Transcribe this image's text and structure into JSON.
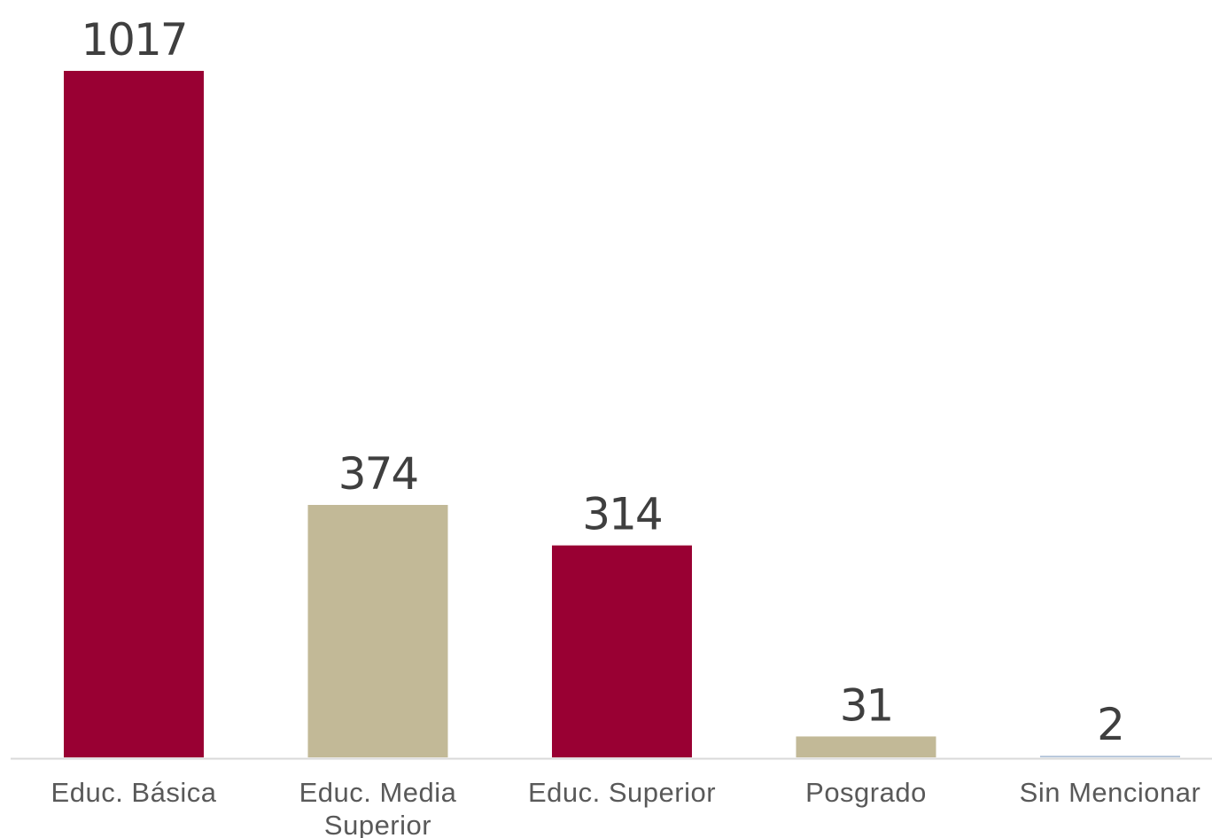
{
  "chart_data": {
    "type": "bar",
    "title": "",
    "xlabel": "",
    "ylabel": "",
    "categories": [
      [
        "Educ. Básica"
      ],
      [
        "Educ. Media",
        "Superior"
      ],
      [
        "Educ. Superior"
      ],
      [
        "Posgrado"
      ],
      [
        "Sin Mencionar"
      ]
    ],
    "values": [
      1017,
      374,
      314,
      31,
      2
    ],
    "bar_colors": [
      "#990033",
      "#C2B997",
      "#990033",
      "#C2B997",
      "#B9C9DC"
    ],
    "ylim": [
      0,
      1017
    ],
    "grid": false,
    "legend": "none",
    "data_labels": true
  }
}
